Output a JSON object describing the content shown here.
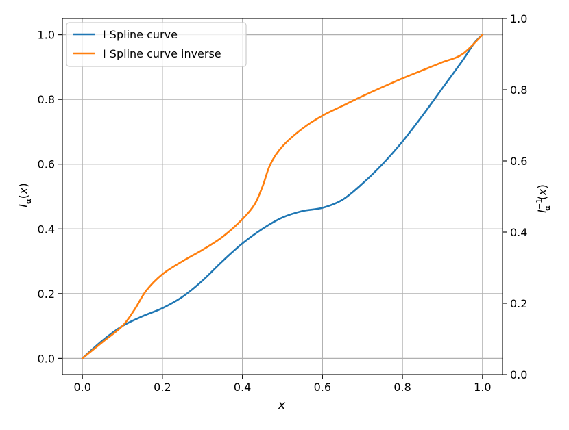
{
  "chart_data": {
    "type": "line",
    "xlabel": "x",
    "ylabel_left": "I_α(x)",
    "ylabel_right": "I_α^{-1}(x)",
    "xlim": [
      -0.05,
      1.05
    ],
    "ylim_left": [
      -0.05,
      1.05
    ],
    "ylim_right": [
      0.0,
      1.0
    ],
    "xticks": [
      0.0,
      0.2,
      0.4,
      0.6,
      0.8,
      1.0
    ],
    "xtick_labels": [
      "0.0",
      "0.2",
      "0.4",
      "0.6",
      "0.8",
      "1.0"
    ],
    "yticks_left": [
      0.0,
      0.2,
      0.4,
      0.6,
      0.8,
      1.0
    ],
    "ytick_labels_left": [
      "0.0",
      "0.2",
      "0.4",
      "0.6",
      "0.8",
      "1.0"
    ],
    "yticks_right": [
      0.0,
      0.2,
      0.4,
      0.6,
      0.8,
      1.0
    ],
    "ytick_labels_right": [
      "0.0",
      "0.2",
      "0.4",
      "0.6",
      "0.8",
      "1.0"
    ],
    "grid": true,
    "legend_position": "upper-left",
    "series": [
      {
        "name": "I Spline curve",
        "color": "#1f77b4",
        "x": [
          0.0,
          0.05,
          0.1,
          0.15,
          0.2,
          0.25,
          0.3,
          0.35,
          0.4,
          0.45,
          0.5,
          0.55,
          0.6,
          0.65,
          0.7,
          0.75,
          0.8,
          0.85,
          0.9,
          0.95,
          0.98,
          1.0
        ],
        "y": [
          0.0,
          0.055,
          0.1,
          0.13,
          0.155,
          0.19,
          0.24,
          0.3,
          0.355,
          0.4,
          0.435,
          0.455,
          0.465,
          0.49,
          0.54,
          0.6,
          0.67,
          0.75,
          0.835,
          0.92,
          0.975,
          1.0
        ]
      },
      {
        "name": "I Spline curve inverse",
        "color": "#ff7f0e",
        "x": [
          0.0,
          0.05,
          0.1,
          0.13,
          0.16,
          0.2,
          0.25,
          0.3,
          0.35,
          0.4,
          0.43,
          0.45,
          0.47,
          0.5,
          0.55,
          0.6,
          0.65,
          0.7,
          0.75,
          0.8,
          0.85,
          0.9,
          0.95,
          1.0
        ],
        "y": [
          0.0,
          0.05,
          0.1,
          0.15,
          0.21,
          0.26,
          0.3,
          0.335,
          0.375,
          0.43,
          0.475,
          0.53,
          0.6,
          0.655,
          0.71,
          0.75,
          0.78,
          0.81,
          0.838,
          0.865,
          0.89,
          0.915,
          0.94,
          1.0
        ]
      }
    ]
  }
}
